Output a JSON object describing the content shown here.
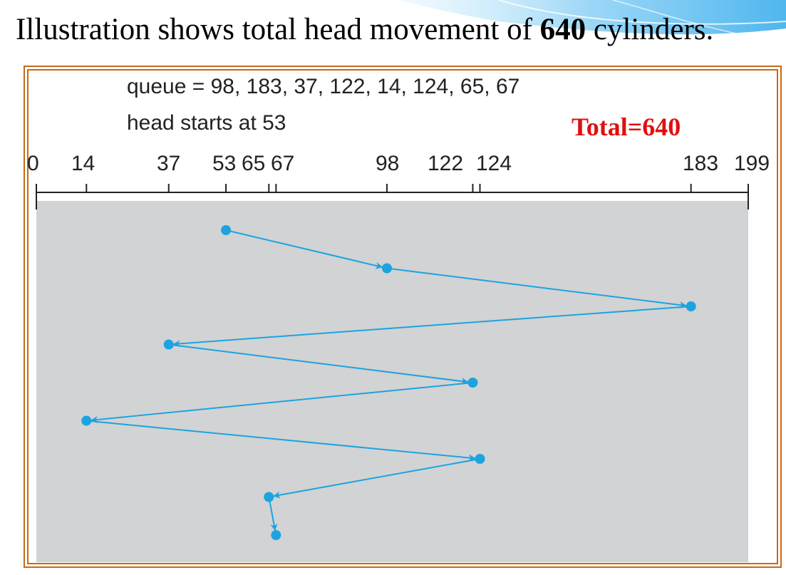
{
  "headline": {
    "prefix": "Illustration shows total head movement of ",
    "bold": "640",
    "suffix": " cylinders."
  },
  "diagram": {
    "queue_text": "queue = 98, 183, 37, 122, 14, 124, 65, 67",
    "head_text": "head starts at 53",
    "total_text": "Total=640",
    "axis": {
      "min": 0,
      "max": 199
    },
    "tick_labels": [
      "0",
      "14",
      "37",
      "53",
      "65",
      "67",
      "98",
      "122",
      "124",
      "183",
      "199"
    ],
    "sequence": [
      53,
      98,
      183,
      37,
      122,
      14,
      124,
      65,
      67
    ],
    "colors": {
      "path": "#1ca3e0",
      "background": "#d1d3d4",
      "frame": "#c76a16",
      "total": "#e01010"
    }
  }
}
